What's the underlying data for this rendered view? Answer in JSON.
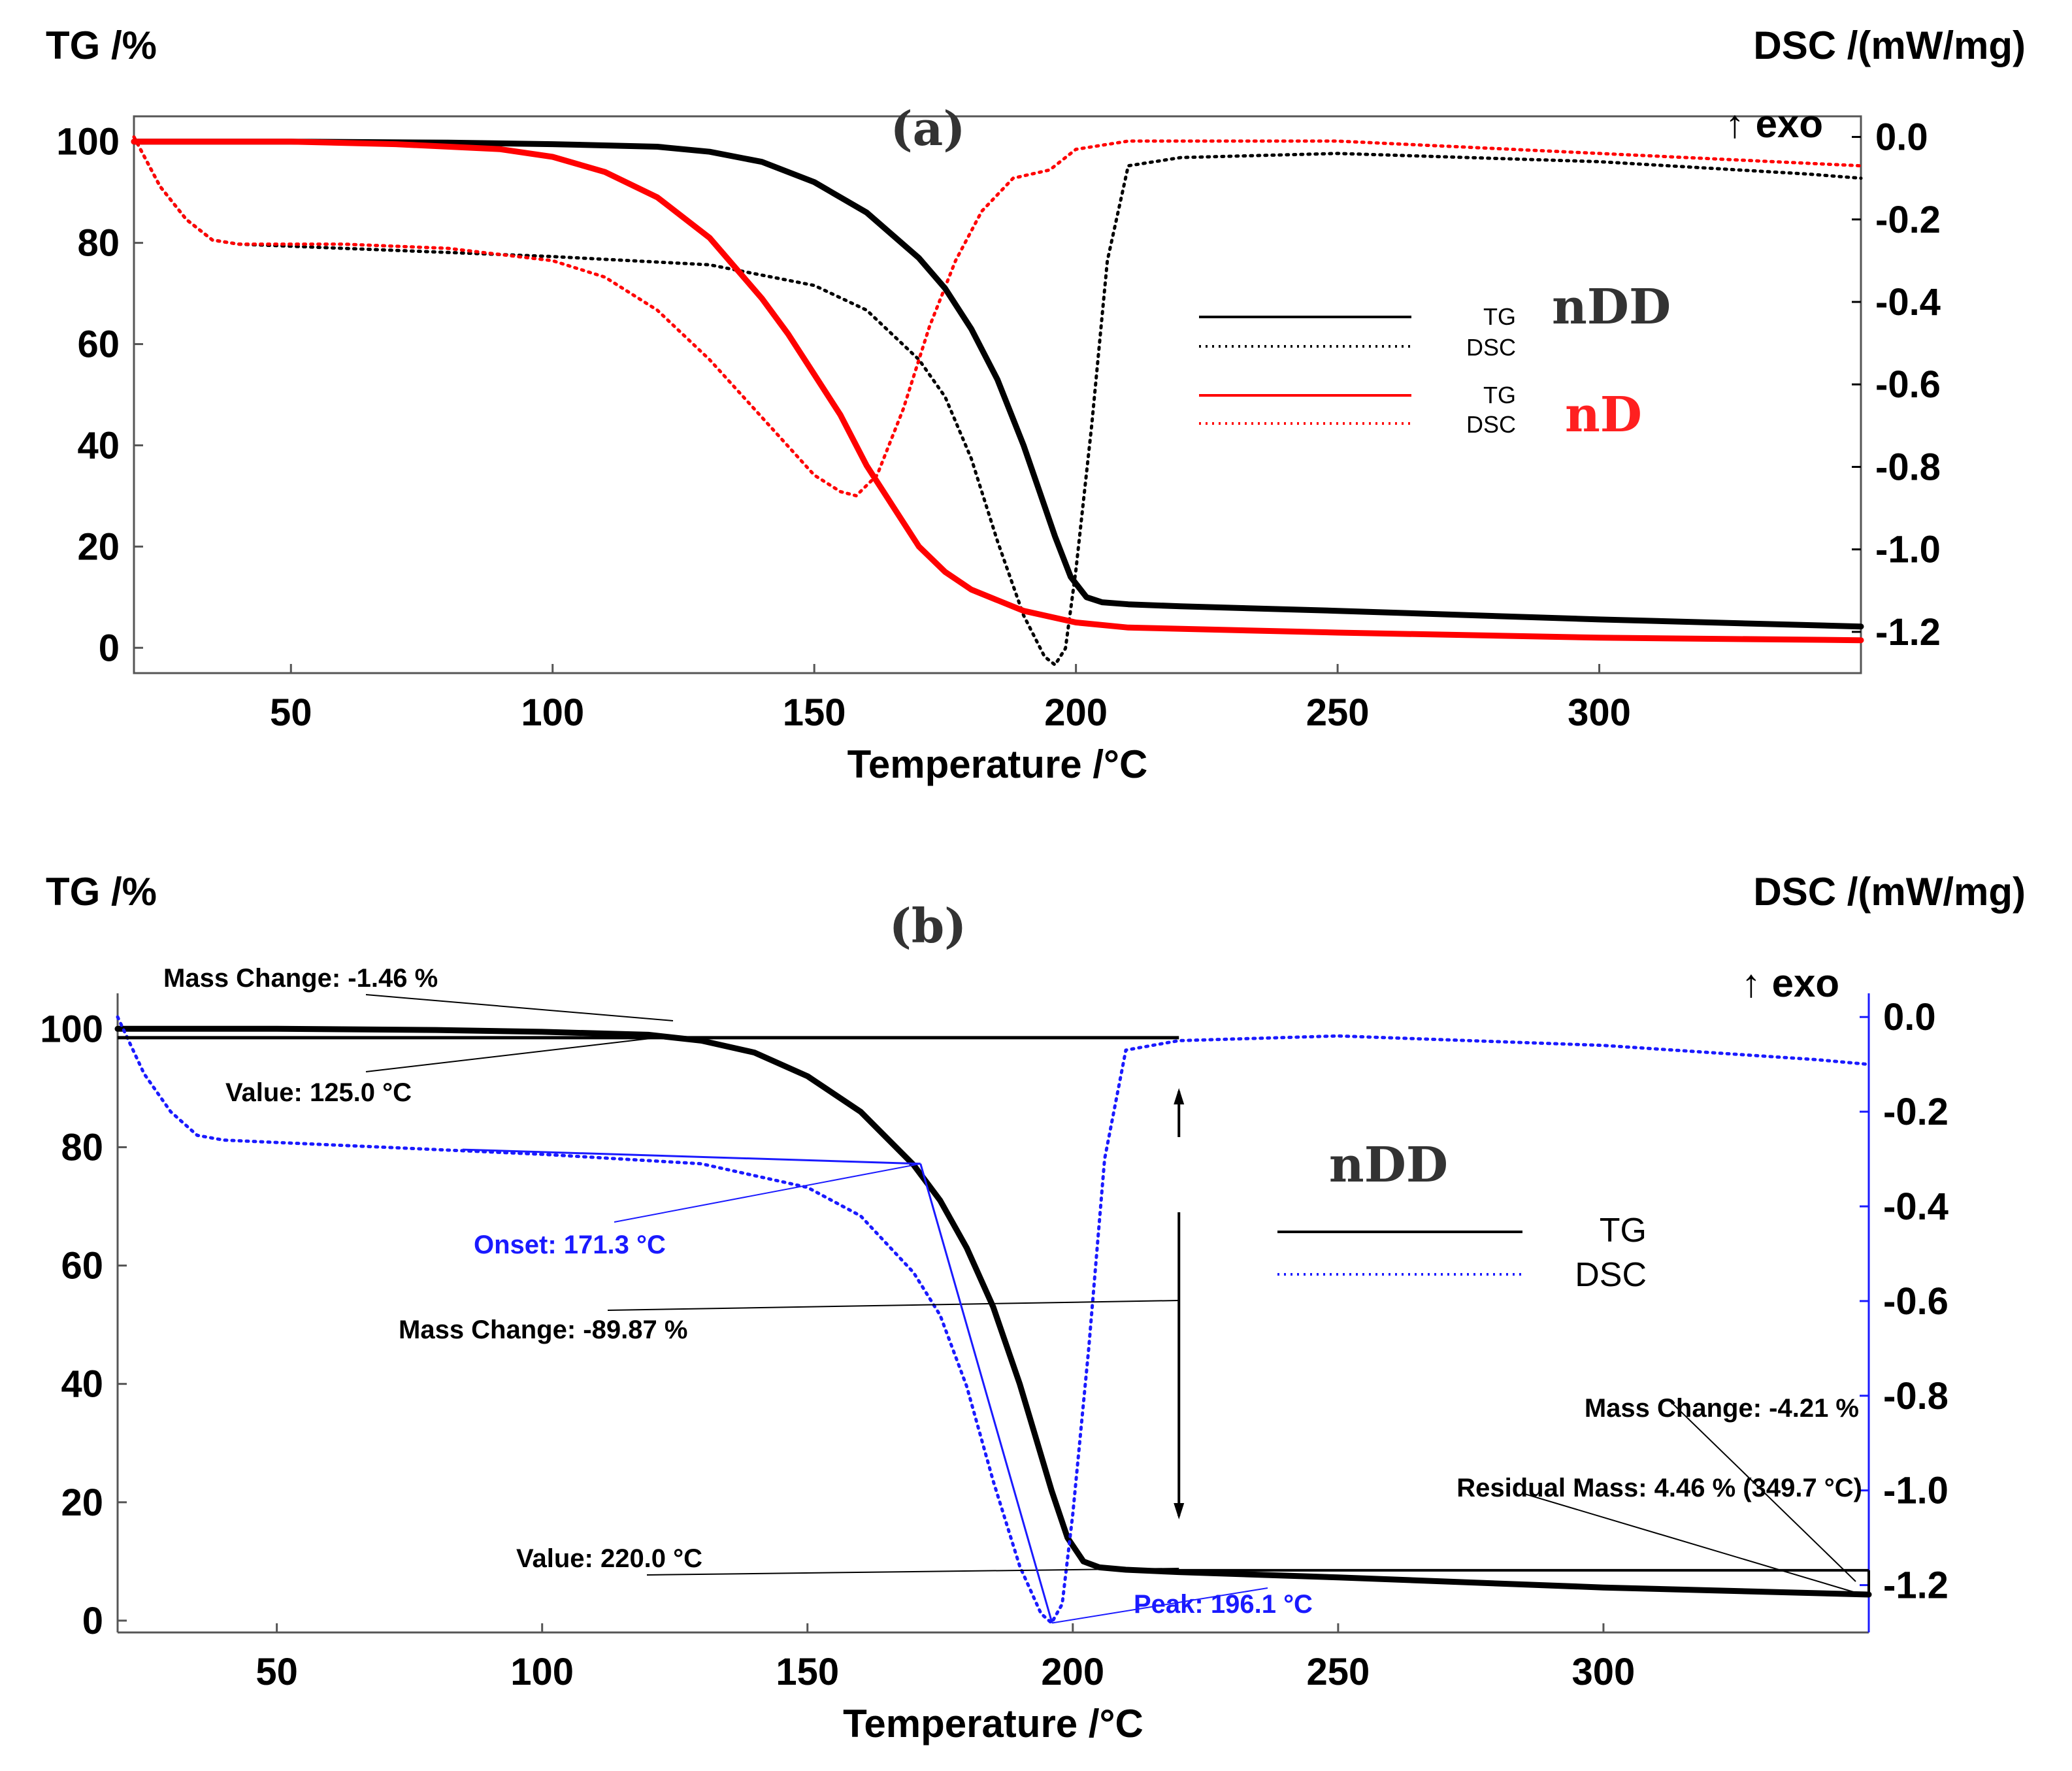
{
  "chart_data": [
    {
      "type": "line",
      "panel_label": "(a)",
      "xlabel": "Temperature /°C",
      "ylabel_left": "TG /%",
      "ylabel_right": "DSC /(mW/mg)",
      "right_axis_note": "↑ exo",
      "xlim": [
        20,
        350
      ],
      "ylim_left": [
        -5,
        105
      ],
      "ylim_right": [
        -1.3,
        0.05
      ],
      "x_ticks": [
        50,
        100,
        150,
        200,
        250,
        300
      ],
      "y_ticks_left": [
        0,
        20,
        40,
        60,
        80,
        100
      ],
      "y_ticks_right": [
        0.0,
        -0.2,
        -0.4,
        -0.6,
        -0.8,
        -1.0,
        -1.2
      ],
      "y_tick_labels_right": [
        "0.0",
        "-0.2",
        "-0.4",
        "-0.6",
        "-0.8",
        "-1.0",
        "-1.2"
      ],
      "legend": [
        {
          "sample": "nDD",
          "sample_color": "#333333",
          "entries": [
            {
              "label": "TG",
              "style": "solid",
              "color": "#000000"
            },
            {
              "label": "DSC",
              "style": "dotted",
              "color": "#000000"
            }
          ]
        },
        {
          "sample": "nD",
          "sample_color": "#ff2020",
          "entries": [
            {
              "label": "TG",
              "style": "solid",
              "color": "#ff0000"
            },
            {
              "label": "DSC",
              "style": "dotted",
              "color": "#ff0000"
            }
          ]
        }
      ],
      "series": [
        {
          "sample": "nDD",
          "kind": "TG",
          "axis": "left",
          "color": "#000000",
          "style": "solid",
          "x": [
            20,
            50,
            80,
            100,
            120,
            130,
            140,
            150,
            160,
            170,
            175,
            180,
            185,
            190,
            193,
            196,
            199,
            202,
            205,
            210,
            220,
            250,
            300,
            350
          ],
          "y": [
            100,
            100,
            99.8,
            99.5,
            99,
            98,
            96,
            92,
            86,
            77,
            71,
            63,
            53,
            40,
            31,
            22,
            14,
            10,
            9,
            8.6,
            8.2,
            7.3,
            5.6,
            4.2
          ]
        },
        {
          "sample": "nDD",
          "kind": "DSC",
          "axis": "right",
          "color": "#000000",
          "style": "dotted",
          "x": [
            20,
            25,
            30,
            35,
            40,
            60,
            100,
            130,
            150,
            160,
            170,
            175,
            180,
            185,
            190,
            194,
            196,
            198,
            200,
            203,
            206,
            210,
            220,
            250,
            300,
            340,
            350
          ],
          "y": [
            0.0,
            -0.12,
            -0.2,
            -0.25,
            -0.26,
            -0.27,
            -0.29,
            -0.31,
            -0.36,
            -0.42,
            -0.54,
            -0.63,
            -0.78,
            -0.98,
            -1.16,
            -1.26,
            -1.28,
            -1.24,
            -1.05,
            -0.7,
            -0.3,
            -0.07,
            -0.05,
            -0.04,
            -0.06,
            -0.09,
            -0.1
          ]
        },
        {
          "sample": "nD",
          "kind": "TG",
          "axis": "left",
          "color": "#ff0000",
          "style": "solid",
          "x": [
            20,
            50,
            70,
            90,
            100,
            110,
            120,
            130,
            140,
            145,
            150,
            155,
            160,
            165,
            170,
            175,
            180,
            190,
            200,
            210,
            250,
            300,
            350
          ],
          "y": [
            100,
            100,
            99.5,
            98.5,
            97,
            94,
            89,
            81,
            69,
            62,
            54,
            46,
            36,
            28,
            20,
            15,
            11.5,
            7.3,
            5,
            4,
            3,
            2,
            1.5
          ]
        },
        {
          "sample": "nD",
          "kind": "DSC",
          "axis": "right",
          "color": "#ff0000",
          "style": "dotted",
          "x": [
            20,
            25,
            30,
            35,
            40,
            60,
            80,
            100,
            110,
            120,
            130,
            140,
            150,
            155,
            158,
            162,
            167,
            172,
            177,
            182,
            188,
            195,
            200,
            210,
            250,
            300,
            350
          ],
          "y": [
            0.0,
            -0.12,
            -0.2,
            -0.25,
            -0.26,
            -0.26,
            -0.27,
            -0.3,
            -0.34,
            -0.42,
            -0.54,
            -0.68,
            -0.82,
            -0.86,
            -0.87,
            -0.82,
            -0.66,
            -0.46,
            -0.3,
            -0.18,
            -0.1,
            -0.08,
            -0.03,
            -0.01,
            -0.01,
            -0.04,
            -0.07
          ]
        }
      ]
    },
    {
      "type": "line",
      "panel_label": "(b)",
      "xlabel": "Temperature /°C",
      "ylabel_left": "TG /%",
      "ylabel_right": "DSC /(mW/mg)",
      "right_axis_note": "↑ exo",
      "xlim": [
        20,
        350
      ],
      "ylim_left": [
        -2,
        106
      ],
      "ylim_right": [
        -1.3,
        0.05
      ],
      "x_ticks": [
        50,
        100,
        150,
        200,
        250,
        300
      ],
      "y_ticks_left": [
        0,
        20,
        40,
        60,
        80,
        100
      ],
      "y_ticks_right": [
        0.0,
        -0.2,
        -0.4,
        -0.6,
        -0.8,
        -1.0,
        -1.2
      ],
      "y_tick_labels_right": [
        "0.0",
        "-0.2",
        "-0.4",
        "-0.6",
        "-0.8",
        "-1.0",
        "-1.2"
      ],
      "legend": [
        {
          "sample": "nDD",
          "sample_color": "#333333",
          "entries": [
            {
              "label": "TG",
              "style": "solid",
              "color": "#000000"
            },
            {
              "label": "DSC",
              "style": "dotted",
              "color": "#1a1aff"
            }
          ]
        }
      ],
      "annotations": {
        "mass_change_1": "Mass Change: -1.46 %",
        "value_1": "Value: 125.0 °C",
        "onset": "Onset: 171.3 °C",
        "mass_change_2": "Mass Change: -89.87 %",
        "value_2": "Value: 220.0 °C",
        "peak": "Peak: 196.1 °C",
        "mass_change_3": "Mass Change: -4.21 %",
        "residual": "Residual Mass: 4.46 % (349.7 °C)"
      },
      "series": [
        {
          "sample": "nDD",
          "kind": "TG",
          "axis": "left",
          "color": "#000000",
          "style": "solid",
          "x": [
            20,
            50,
            80,
            100,
            120,
            130,
            140,
            150,
            160,
            170,
            175,
            180,
            185,
            190,
            193,
            196,
            199,
            202,
            205,
            210,
            220,
            250,
            300,
            350
          ],
          "y": [
            100,
            100,
            99.8,
            99.5,
            99,
            98,
            96,
            92,
            86,
            77,
            71,
            63,
            53,
            40,
            31,
            22,
            14,
            10,
            9,
            8.6,
            8.2,
            7.3,
            5.6,
            4.4
          ]
        },
        {
          "sample": "nDD",
          "kind": "DSC",
          "axis": "right",
          "color": "#1a1aff",
          "style": "dotted",
          "x": [
            20,
            25,
            30,
            35,
            40,
            60,
            100,
            130,
            150,
            160,
            170,
            175,
            180,
            185,
            190,
            194,
            196,
            198,
            200,
            203,
            206,
            210,
            220,
            250,
            300,
            340,
            350
          ],
          "y": [
            0.0,
            -0.12,
            -0.2,
            -0.25,
            -0.26,
            -0.27,
            -0.29,
            -0.31,
            -0.36,
            -0.42,
            -0.54,
            -0.63,
            -0.78,
            -0.98,
            -1.16,
            -1.26,
            -1.28,
            -1.24,
            -1.05,
            -0.7,
            -0.3,
            -0.07,
            -0.05,
            -0.04,
            -0.06,
            -0.09,
            -0.1
          ]
        }
      ]
    }
  ]
}
